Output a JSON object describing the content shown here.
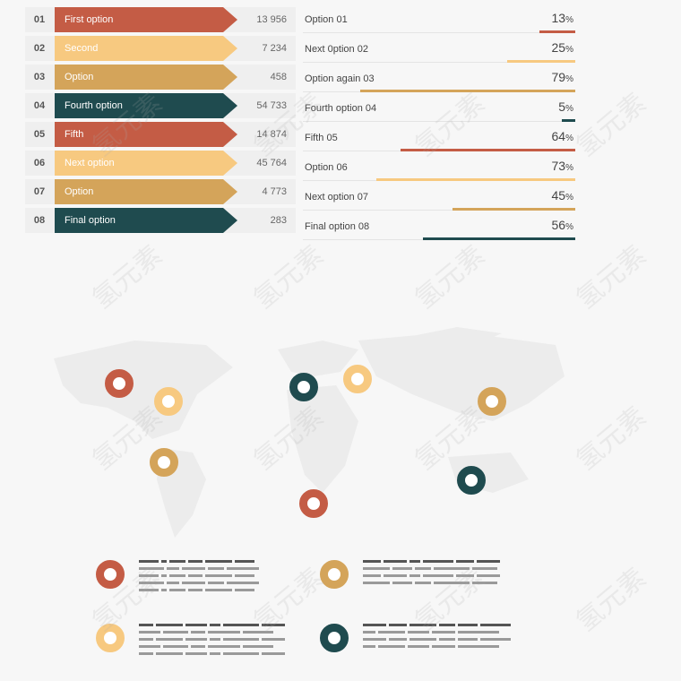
{
  "rows": [
    {
      "num": "01",
      "label": "First option",
      "value": "13 956",
      "color": "#c45c45"
    },
    {
      "num": "02",
      "label": "Second",
      "value": "7 234",
      "color": "#f7c980"
    },
    {
      "num": "03",
      "label": "Option",
      "value": "458",
      "color": "#d4a45a"
    },
    {
      "num": "04",
      "label": "Fourth option",
      "value": "54 733",
      "color": "#1f4b4f"
    },
    {
      "num": "05",
      "label": "Fifth",
      "value": "14 874",
      "color": "#c45c45"
    },
    {
      "num": "06",
      "label": "Next option",
      "value": "45 764",
      "color": "#f7c980"
    },
    {
      "num": "07",
      "label": "Option",
      "value": "4 773",
      "color": "#d4a45a"
    },
    {
      "num": "08",
      "label": "Final option",
      "value": "283",
      "color": "#1f4b4f"
    }
  ],
  "percent_rows": [
    {
      "label": "Option 01",
      "value": "13",
      "unit": "%",
      "fraction": 0.13,
      "color": "#c45c45"
    },
    {
      "label": "Next 0ption 02",
      "value": "25",
      "unit": "%",
      "fraction": 0.25,
      "color": "#f7c980"
    },
    {
      "label": "Option again 03",
      "value": "79",
      "unit": "%",
      "fraction": 0.79,
      "color": "#d4a45a"
    },
    {
      "label": "Fourth option 04",
      "value": "5",
      "unit": "%",
      "fraction": 0.05,
      "color": "#1f4b4f"
    },
    {
      "label": "Fifth 05",
      "value": "64",
      "unit": "%",
      "fraction": 0.64,
      "color": "#c45c45"
    },
    {
      "label": "Option 06",
      "value": "73",
      "unit": "%",
      "fraction": 0.73,
      "color": "#f7c980"
    },
    {
      "label": "Next option 07",
      "value": "45",
      "unit": "%",
      "fraction": 0.45,
      "color": "#d4a45a"
    },
    {
      "label": "Final option 08",
      "value": "56",
      "unit": "%",
      "fraction": 0.56,
      "color": "#1f4b4f"
    }
  ],
  "map_markers": [
    {
      "name": "marker-north-america-west",
      "color": "#c45c45"
    },
    {
      "name": "marker-north-america-central",
      "color": "#f7c980"
    },
    {
      "name": "marker-south-america",
      "color": "#d4a45a"
    },
    {
      "name": "marker-europe",
      "color": "#1f4b4f"
    },
    {
      "name": "marker-russia",
      "color": "#f7c980"
    },
    {
      "name": "marker-east-asia",
      "color": "#d4a45a"
    },
    {
      "name": "marker-africa",
      "color": "#c45c45"
    },
    {
      "name": "marker-australia",
      "color": "#1f4b4f"
    }
  ],
  "legend_items": [
    {
      "name": "legend-item-1",
      "color": "#c45c45"
    },
    {
      "name": "legend-item-2",
      "color": "#d4a45a"
    },
    {
      "name": "legend-item-3",
      "color": "#f7c980"
    },
    {
      "name": "legend-item-4",
      "color": "#1f4b4f"
    }
  ],
  "watermark": "氢元素"
}
